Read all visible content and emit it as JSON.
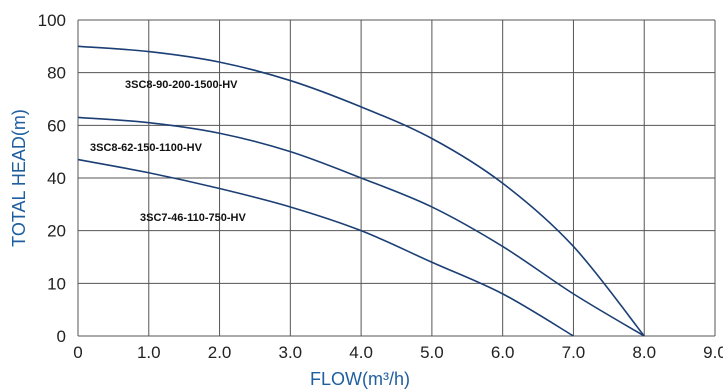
{
  "chart_data": {
    "type": "line",
    "xlabel": "FLOW(m³/h)",
    "ylabel": "TOTAL HEAD(m)",
    "xlim": [
      0,
      9
    ],
    "x_ticks": [
      "0",
      "1.0",
      "2.0",
      "3.0",
      "4.0",
      "5.0",
      "6.0",
      "7.0",
      "8.0",
      "9.0"
    ],
    "y_ticks": [
      {
        "value": 0,
        "label": "0"
      },
      {
        "value": 10,
        "label": "10"
      },
      {
        "value": 20,
        "label": "20"
      },
      {
        "value": 40,
        "label": "40"
      },
      {
        "value": 60,
        "label": "60"
      },
      {
        "value": 80,
        "label": "80"
      },
      {
        "value": 100,
        "label": "100"
      }
    ],
    "grid": true,
    "line_color": "#1b3f74",
    "series": [
      {
        "name": "3SC8-90-200-1500-HV",
        "x": [
          0,
          1,
          2,
          3,
          4,
          5,
          6,
          7,
          8
        ],
        "y": [
          90,
          88,
          84,
          77,
          67,
          55,
          38,
          17,
          0
        ]
      },
      {
        "name": "3SC8-62-150-1100-HV",
        "x": [
          0,
          1,
          2,
          3,
          4,
          5,
          6,
          7,
          8
        ],
        "y": [
          63,
          61,
          57,
          50,
          40,
          29,
          17,
          8,
          0
        ]
      },
      {
        "name": "3SC7-46-110-750-HV",
        "x": [
          0,
          1,
          2,
          3,
          4,
          5,
          6,
          7
        ],
        "y": [
          47,
          42,
          36,
          29,
          20,
          14,
          8,
          0
        ]
      }
    ]
  }
}
